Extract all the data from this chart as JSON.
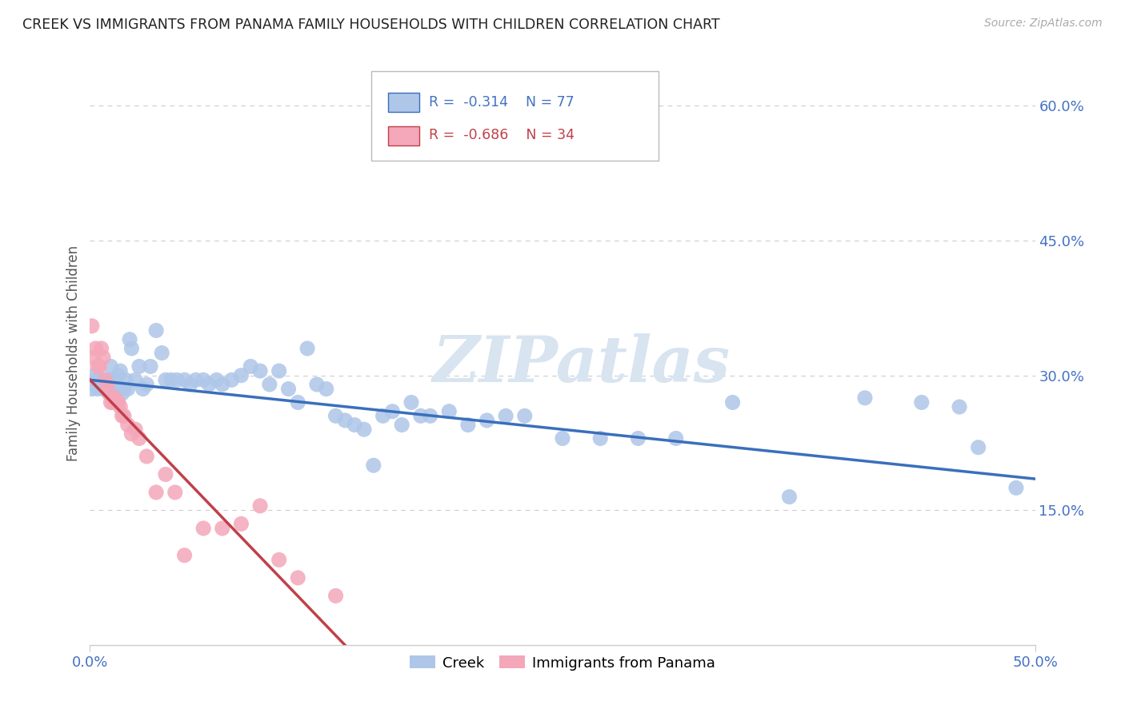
{
  "title": "CREEK VS IMMIGRANTS FROM PANAMA FAMILY HOUSEHOLDS WITH CHILDREN CORRELATION CHART",
  "source": "Source: ZipAtlas.com",
  "ylabel": "Family Households with Children",
  "watermark": "ZIPatlas",
  "xlim": [
    0.0,
    0.5
  ],
  "ylim": [
    0.0,
    0.65
  ],
  "xticks": [
    0.0,
    0.5
  ],
  "xtick_labels": [
    "0.0%",
    "50.0%"
  ],
  "yticks_right": [
    0.15,
    0.3,
    0.45,
    0.6
  ],
  "ytick_labels_right": [
    "15.0%",
    "30.0%",
    "45.0%",
    "60.0%"
  ],
  "legend1_label": "Creek",
  "legend2_label": "Immigrants from Panama",
  "series1_R": "-0.314",
  "series1_N": "77",
  "series2_R": "-0.686",
  "series2_N": "34",
  "color_blue": "#aec6e8",
  "color_pink": "#f4a7b9",
  "line_color_blue": "#3a6fbc",
  "line_color_pink": "#c0404a",
  "text_color": "#4472c4",
  "grid_color": "#cccccc",
  "background": "#ffffff",
  "creek_x": [
    0.001,
    0.002,
    0.003,
    0.004,
    0.005,
    0.006,
    0.007,
    0.008,
    0.009,
    0.01,
    0.011,
    0.012,
    0.013,
    0.014,
    0.015,
    0.016,
    0.017,
    0.018,
    0.019,
    0.02,
    0.021,
    0.022,
    0.024,
    0.026,
    0.028,
    0.03,
    0.032,
    0.035,
    0.038,
    0.04,
    0.043,
    0.046,
    0.05,
    0.053,
    0.056,
    0.06,
    0.063,
    0.067,
    0.07,
    0.075,
    0.08,
    0.085,
    0.09,
    0.095,
    0.1,
    0.105,
    0.11,
    0.115,
    0.12,
    0.125,
    0.13,
    0.135,
    0.14,
    0.145,
    0.15,
    0.155,
    0.16,
    0.165,
    0.17,
    0.175,
    0.18,
    0.19,
    0.2,
    0.21,
    0.22,
    0.23,
    0.25,
    0.27,
    0.29,
    0.31,
    0.34,
    0.37,
    0.41,
    0.44,
    0.46,
    0.47,
    0.49
  ],
  "creek_y": [
    0.285,
    0.3,
    0.295,
    0.285,
    0.29,
    0.295,
    0.285,
    0.29,
    0.295,
    0.285,
    0.31,
    0.295,
    0.285,
    0.29,
    0.3,
    0.305,
    0.28,
    0.285,
    0.295,
    0.285,
    0.34,
    0.33,
    0.295,
    0.31,
    0.285,
    0.29,
    0.31,
    0.35,
    0.325,
    0.295,
    0.295,
    0.295,
    0.295,
    0.29,
    0.295,
    0.295,
    0.29,
    0.295,
    0.29,
    0.295,
    0.3,
    0.31,
    0.305,
    0.29,
    0.305,
    0.285,
    0.27,
    0.33,
    0.29,
    0.285,
    0.255,
    0.25,
    0.245,
    0.24,
    0.2,
    0.255,
    0.26,
    0.245,
    0.27,
    0.255,
    0.255,
    0.26,
    0.245,
    0.25,
    0.255,
    0.255,
    0.23,
    0.23,
    0.23,
    0.23,
    0.27,
    0.165,
    0.275,
    0.27,
    0.265,
    0.22,
    0.175
  ],
  "panama_x": [
    0.001,
    0.002,
    0.003,
    0.004,
    0.005,
    0.006,
    0.007,
    0.008,
    0.009,
    0.01,
    0.011,
    0.012,
    0.013,
    0.014,
    0.015,
    0.016,
    0.017,
    0.018,
    0.02,
    0.022,
    0.024,
    0.026,
    0.03,
    0.035,
    0.04,
    0.045,
    0.05,
    0.06,
    0.07,
    0.08,
    0.09,
    0.1,
    0.11,
    0.13
  ],
  "panama_y": [
    0.355,
    0.32,
    0.33,
    0.31,
    0.31,
    0.33,
    0.32,
    0.295,
    0.29,
    0.28,
    0.27,
    0.27,
    0.275,
    0.27,
    0.27,
    0.265,
    0.255,
    0.255,
    0.245,
    0.235,
    0.24,
    0.23,
    0.21,
    0.17,
    0.19,
    0.17,
    0.1,
    0.13,
    0.13,
    0.135,
    0.155,
    0.095,
    0.075,
    0.055
  ],
  "creek_line_x": [
    0.0,
    0.5
  ],
  "creek_line_y": [
    0.295,
    0.185
  ],
  "panama_line_x": [
    0.0,
    0.135
  ],
  "panama_line_y": [
    0.295,
    0.0
  ]
}
